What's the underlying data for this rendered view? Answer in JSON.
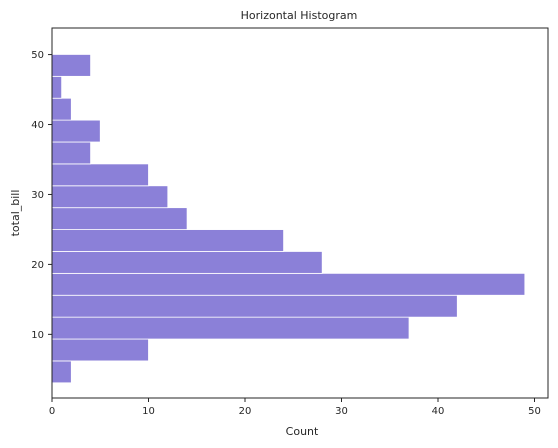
{
  "chart_data": {
    "type": "bar",
    "orientation": "horizontal",
    "title": "Horizontal Histogram",
    "xlabel": "Count",
    "ylabel": "total_bill",
    "xlim": [
      0,
      51.4
    ],
    "ylim": [
      0.9,
      53.8
    ],
    "xticks": [
      0,
      10,
      20,
      30,
      40,
      50
    ],
    "yticks": [
      10,
      20,
      30,
      40,
      50
    ],
    "bar_color": "#8b80d8",
    "grid": false,
    "bins": [
      {
        "y0": 3.07,
        "y1": 6.2,
        "count": 2
      },
      {
        "y0": 6.2,
        "y1": 9.33,
        "count": 10
      },
      {
        "y0": 9.33,
        "y1": 12.46,
        "count": 37
      },
      {
        "y0": 12.46,
        "y1": 15.59,
        "count": 42
      },
      {
        "y0": 15.59,
        "y1": 18.72,
        "count": 49
      },
      {
        "y0": 18.72,
        "y1": 21.85,
        "count": 28
      },
      {
        "y0": 21.85,
        "y1": 24.98,
        "count": 24
      },
      {
        "y0": 24.98,
        "y1": 28.11,
        "count": 14
      },
      {
        "y0": 28.11,
        "y1": 31.24,
        "count": 12
      },
      {
        "y0": 31.24,
        "y1": 34.37,
        "count": 10
      },
      {
        "y0": 34.37,
        "y1": 37.5,
        "count": 4
      },
      {
        "y0": 37.5,
        "y1": 40.63,
        "count": 5
      },
      {
        "y0": 40.63,
        "y1": 43.76,
        "count": 2
      },
      {
        "y0": 43.76,
        "y1": 46.89,
        "count": 1
      },
      {
        "y0": 46.89,
        "y1": 50.02,
        "count": 4
      }
    ]
  }
}
